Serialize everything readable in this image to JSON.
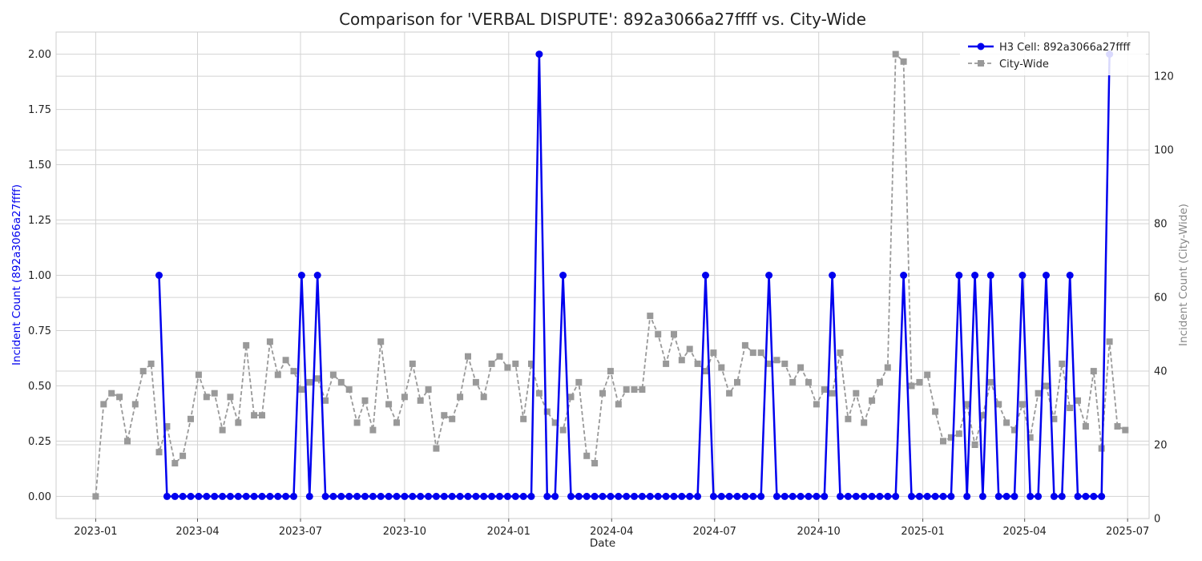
{
  "chart_data": {
    "type": "line",
    "title": "Comparison for 'VERBAL DISPUTE': 892a3066a27ffff vs. City-Wide",
    "xlabel": "Date",
    "ylabel_left": "Incident Count (892a3066a27ffff)",
    "ylabel_right": "Incident Count (City-Wide)",
    "grid": true,
    "legend_position": "top-right",
    "x_range": [
      "2022-11-27",
      "2025-07-20"
    ],
    "x_ticks": [
      "2023-01",
      "2023-04",
      "2023-07",
      "2023-10",
      "2024-01",
      "2024-04",
      "2024-07",
      "2024-10",
      "2025-01",
      "2025-04",
      "2025-07"
    ],
    "y_left": {
      "min": -0.1,
      "max": 2.1,
      "ticks": [
        "0.00",
        "0.25",
        "0.50",
        "0.75",
        "1.00",
        "1.25",
        "1.50",
        "1.75",
        "2.00"
      ],
      "color": "#0000ee"
    },
    "y_right": {
      "min": 0,
      "max": 132,
      "ticks": [
        "0",
        "20",
        "40",
        "60",
        "80",
        "100",
        "120"
      ],
      "color": "#888888"
    },
    "x_start": "2023-01-01",
    "x_step_days": 7,
    "series": [
      {
        "name": "H3 Cell: 892a3066a27ffff",
        "axis": "left",
        "color": "#0000ee",
        "style": "solid-circle",
        "points": [
          [
            8,
            1
          ],
          [
            26,
            1
          ],
          [
            28,
            1
          ],
          [
            56,
            2
          ],
          [
            59,
            1
          ],
          [
            77,
            1
          ],
          [
            85,
            1
          ],
          [
            93,
            1
          ],
          [
            102,
            1
          ],
          [
            109,
            1
          ],
          [
            111,
            1
          ],
          [
            113,
            1
          ],
          [
            117,
            1
          ],
          [
            120,
            1
          ],
          [
            123,
            1
          ],
          [
            128,
            2
          ]
        ]
      },
      {
        "name": "City-Wide",
        "axis": "right",
        "color": "#999999",
        "style": "dashed-square",
        "values": [
          6,
          31,
          34,
          33,
          21,
          31,
          40,
          42,
          18,
          25,
          15,
          17,
          27,
          39,
          33,
          34,
          24,
          33,
          26,
          47,
          28,
          28,
          48,
          39,
          43,
          40,
          35,
          37,
          38,
          32,
          39,
          37,
          35,
          26,
          32,
          24,
          48,
          31,
          26,
          33,
          42,
          32,
          35,
          19,
          28,
          27,
          33,
          44,
          37,
          33,
          42,
          44,
          41,
          42,
          27,
          42,
          34,
          29,
          26,
          24,
          33,
          37,
          17,
          15,
          34,
          40,
          31,
          35,
          35,
          35,
          55,
          50,
          42,
          50,
          43,
          46,
          42,
          40,
          45,
          41,
          34,
          37,
          47,
          45,
          45,
          42,
          43,
          42,
          37,
          41,
          37,
          31,
          35,
          34,
          45,
          27,
          34,
          26,
          32,
          37,
          41,
          126,
          124,
          36,
          37,
          39,
          29,
          21,
          22,
          23,
          31,
          20,
          28,
          37,
          31,
          26,
          24,
          31,
          22,
          34,
          36,
          27,
          42,
          30,
          32,
          25,
          40,
          19,
          48,
          25,
          24
        ]
      }
    ]
  }
}
